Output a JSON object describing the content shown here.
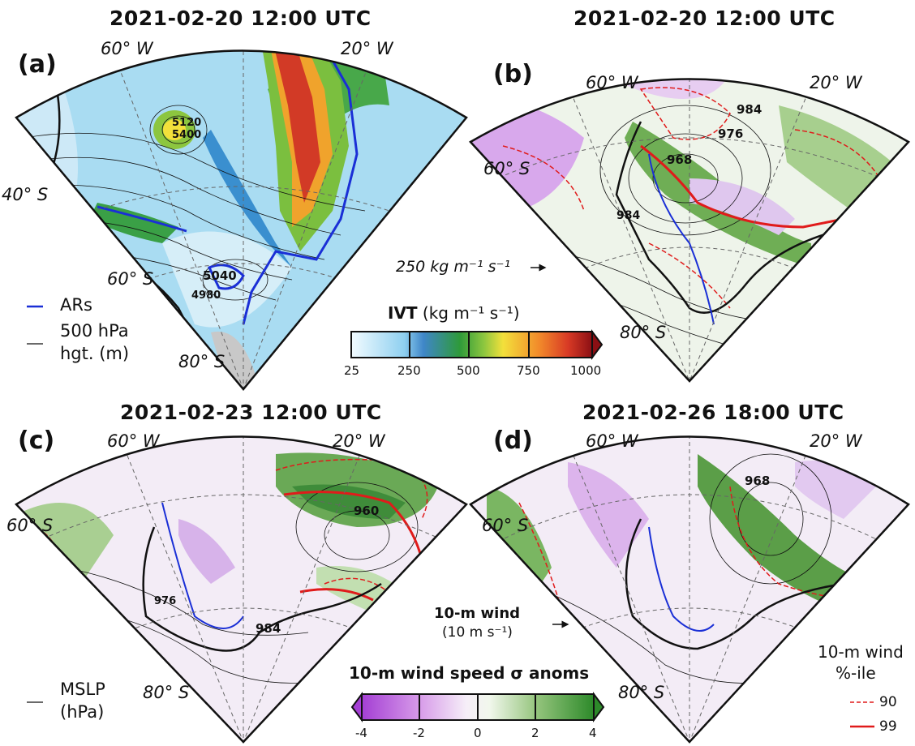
{
  "colors": {
    "ar_blue": "#1a2fd6",
    "pct_red": "#e01b1b",
    "coast": "#111111",
    "land_gray": "#b8b8b8"
  },
  "panels": [
    {
      "letter": "(a)",
      "title": "2021-02-20 12:00 UTC",
      "lon_labels": [
        "60° W",
        "20° W"
      ],
      "lat_labels": [
        "40° S",
        "60° S",
        "80° S"
      ],
      "contour_labels": [
        "5120",
        "5400",
        "5040",
        "4980"
      ]
    },
    {
      "letter": "(b)",
      "title": "2021-02-20 12:00 UTC",
      "lon_labels": [
        "60° W",
        "20° W"
      ],
      "lat_labels": [
        "60° S",
        "80° S"
      ],
      "contour_labels": [
        "984",
        "976",
        "968",
        "984"
      ]
    },
    {
      "letter": "(c)",
      "title": "2021-02-23 12:00 UTC",
      "lon_labels": [
        "60° W",
        "20° W"
      ],
      "lat_labels": [
        "60° S",
        "80° S"
      ],
      "contour_labels": [
        "960",
        "984",
        "976"
      ]
    },
    {
      "letter": "(d)",
      "title": "2021-02-26 18:00 UTC",
      "lon_labels": [
        "60° W",
        "20° W"
      ],
      "lat_labels": [
        "60° S",
        "80° S"
      ],
      "contour_labels": [
        "968"
      ]
    }
  ],
  "legend_a": {
    "ars": "ARs",
    "hgt_line1": "500 hPa",
    "hgt_line2": "hgt. (m)"
  },
  "legend_c": {
    "mslp_line1": "MSLP",
    "mslp_line2": "(hPa)"
  },
  "ivt_ref_arrow": "250 kg m⁻¹ s⁻¹",
  "ivt_colorbar": {
    "label_bold": "IVT",
    "label_units": "(kg m⁻¹ s⁻¹)",
    "ticks": [
      "25",
      "250",
      "500",
      "750",
      "1000"
    ],
    "colors": [
      "#f2fbff",
      "#8fd0f0",
      "#3f86c8",
      "#2e9a3a",
      "#8cc63f",
      "#f3e03b",
      "#f28a2a",
      "#d83a25",
      "#8b0f14"
    ]
  },
  "wind_ref": {
    "line1": "10-m wind",
    "line2": "(10 m s⁻¹)"
  },
  "wind_colorbar": {
    "label": "10-m wind speed σ anoms",
    "ticks": [
      "-4",
      "-2",
      "0",
      "2",
      "4"
    ],
    "colors": [
      "#a43fd4",
      "#d79be9",
      "#f3e4f6",
      "#ffffff",
      "#e4f0da",
      "#96c57e",
      "#2d8a2a"
    ]
  },
  "pct_legend": {
    "title_line1": "10-m wind",
    "title_line2": "%-ile",
    "p90": "90",
    "p99": "99"
  }
}
